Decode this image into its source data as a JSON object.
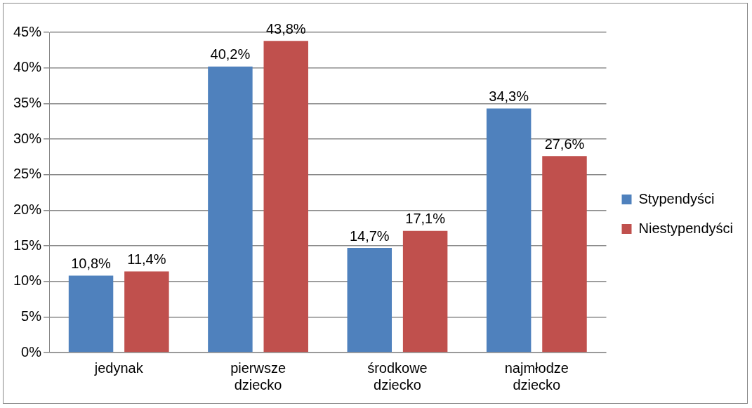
{
  "chart_data": {
    "type": "bar",
    "categories": [
      "jedynak",
      "pierwsze dziecko",
      "środkowe dziecko",
      "najmłodze dziecko"
    ],
    "series": [
      {
        "name": "Stypendyści",
        "color": "#4f81bd",
        "values": [
          10.8,
          40.2,
          14.7,
          34.3
        ],
        "value_labels": [
          "10,8%",
          "40,2%",
          "14,7%",
          "34,3%"
        ]
      },
      {
        "name": "Niestypendyści",
        "color": "#c0504d",
        "values": [
          11.4,
          43.8,
          17.1,
          27.6
        ],
        "value_labels": [
          "11,4%",
          "43,8%",
          "17,1%",
          "27,6%"
        ]
      }
    ],
    "ylim": [
      0,
      45
    ],
    "yticks": [
      {
        "value": 0,
        "label": "0%"
      },
      {
        "value": 5,
        "label": "5%"
      },
      {
        "value": 10,
        "label": "10%"
      },
      {
        "value": 15,
        "label": "15%"
      },
      {
        "value": 20,
        "label": "20%"
      },
      {
        "value": 25,
        "label": "25%"
      },
      {
        "value": 30,
        "label": "30%"
      },
      {
        "value": 35,
        "label": "35%"
      },
      {
        "value": 40,
        "label": "40%"
      },
      {
        "value": 45,
        "label": "45%"
      }
    ],
    "grid": "y",
    "legend": "right"
  }
}
